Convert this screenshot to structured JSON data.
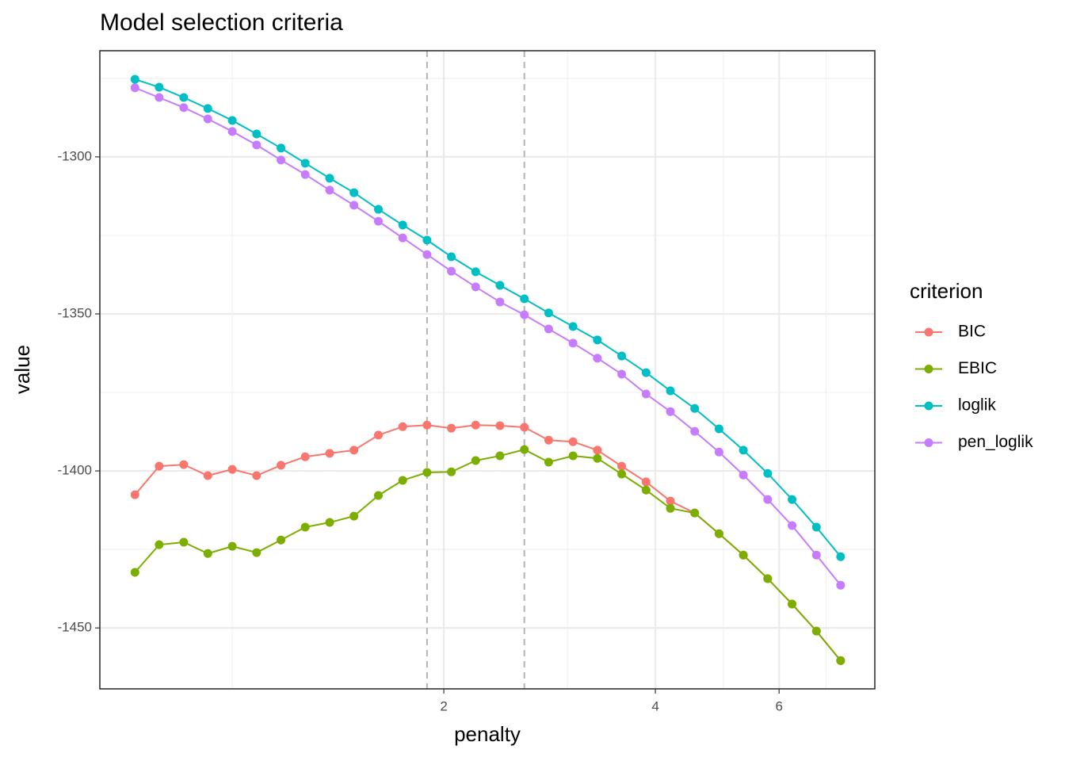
{
  "chart_data": {
    "type": "line",
    "title": "Model selection criteria",
    "x_label": "penalty",
    "y_label": "value",
    "legend_title": "criterion",
    "x_log": true,
    "x": [
      0.727,
      0.787,
      0.853,
      0.923,
      1.0,
      1.083,
      1.173,
      1.27,
      1.376,
      1.49,
      1.614,
      1.748,
      1.893,
      2.05,
      2.22,
      2.404,
      2.604,
      2.82,
      3.054,
      3.308,
      3.582,
      3.88,
      4.202,
      4.55,
      4.928,
      5.337,
      5.78,
      6.26,
      6.78,
      7.34
    ],
    "series": [
      {
        "name": "BIC",
        "color": "#F8766D",
        "values": [
          -1407.6,
          -1398.5,
          -1398.0,
          -1401.5,
          -1399.5,
          -1401.5,
          -1398.2,
          -1395.5,
          -1394.4,
          -1393.4,
          -1388.6,
          -1385.9,
          -1385.4,
          -1386.4,
          -1385.4,
          -1385.6,
          -1386.1,
          -1390.2,
          -1390.7,
          -1393.4,
          -1398.5,
          -1403.5,
          -1409.6,
          -1413.4,
          -1420.0,
          -1426.8,
          -1434.3,
          -1442.4,
          -1451.0,
          -1460.4
        ]
      },
      {
        "name": "EBIC",
        "color": "#7CAE00",
        "values": [
          -1432.3,
          -1423.5,
          -1422.7,
          -1426.3,
          -1424.0,
          -1426.0,
          -1422.0,
          -1417.9,
          -1416.4,
          -1414.4,
          -1407.8,
          -1403.0,
          -1400.5,
          -1400.3,
          -1396.7,
          -1395.2,
          -1393.2,
          -1397.2,
          -1395.2,
          -1396.0,
          -1401.0,
          -1406.1,
          -1411.9,
          -1413.4,
          -1420.0,
          -1426.8,
          -1434.3,
          -1442.4,
          -1451.0,
          -1460.4
        ]
      },
      {
        "name": "loglik",
        "color": "#00BFC4",
        "values": [
          -1275.3,
          -1277.8,
          -1281.1,
          -1284.6,
          -1288.4,
          -1292.7,
          -1297.2,
          -1302.0,
          -1306.8,
          -1311.4,
          -1316.7,
          -1321.7,
          -1326.5,
          -1331.8,
          -1336.6,
          -1340.9,
          -1345.2,
          -1349.7,
          -1354.0,
          -1358.3,
          -1363.4,
          -1368.7,
          -1374.5,
          -1380.1,
          -1386.6,
          -1393.4,
          -1400.8,
          -1409.1,
          -1417.9,
          -1427.3
        ]
      },
      {
        "name": "pen_loglik",
        "color": "#C77CFF",
        "values": [
          -1278.0,
          -1281.1,
          -1284.3,
          -1287.9,
          -1291.9,
          -1296.2,
          -1301.0,
          -1305.6,
          -1310.6,
          -1315.4,
          -1320.5,
          -1325.8,
          -1331.1,
          -1336.4,
          -1341.4,
          -1346.2,
          -1350.3,
          -1354.8,
          -1359.3,
          -1364.1,
          -1369.2,
          -1375.5,
          -1381.1,
          -1387.4,
          -1394.0,
          -1401.3,
          -1409.1,
          -1417.4,
          -1426.8,
          -1436.4
        ]
      }
    ],
    "xlim": [
      0.648,
      8.21
    ],
    "xticks": [
      2,
      4,
      6
    ],
    "x_minor_ticks": [
      1,
      3,
      5,
      7
    ],
    "ylim": [
      -1469.4,
      -1266.2
    ],
    "yticks": [
      -1450,
      -1400,
      -1350,
      -1300
    ],
    "y_minor_ticks": [
      -1425,
      -1375,
      -1325,
      -1275
    ],
    "vlines": [
      1.893,
      2.604
    ],
    "vline_color": "#b3b3b3",
    "grid": true
  }
}
